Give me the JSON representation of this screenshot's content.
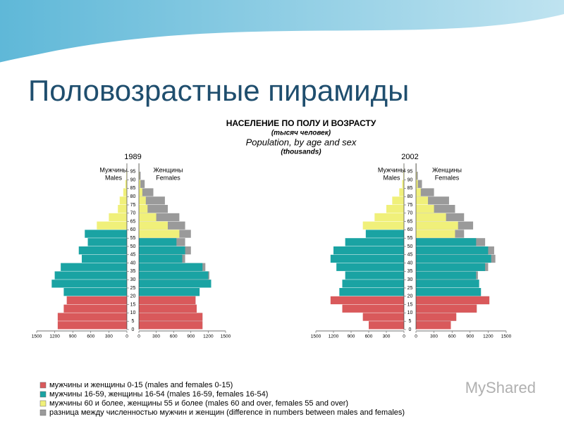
{
  "slide": {
    "title": "Половозрастные пирамиды",
    "header": [
      "НАСЕЛЕНИЕ ПО ПОЛУ И ВОЗРАСТУ",
      "(тысяч человек)",
      "Population, by age and sex",
      "(thousands)"
    ],
    "legend": [
      {
        "label": "мужчины и женщины 0-15 (males and females 0-15)",
        "color": "#d9595b"
      },
      {
        "label": "мужчины 16-59, женщины 16-54 (males 16-59, females 16-54)",
        "color": "#1aa3a3"
      },
      {
        "label": "мужчины 60 и более, женщины 55 и более (males 60 and over, females 55 and over)",
        "color": "#f0f07a"
      },
      {
        "label": "разница между численностью мужчин и женщин (difference in numbers between males and females)",
        "color": "#9a9a9a"
      }
    ],
    "watermark": "MyShared"
  },
  "chart_data": [
    {
      "type": "pyramid",
      "year": "1989",
      "male_label": [
        "Мужчины",
        "Males"
      ],
      "female_label": [
        "Женщины",
        "Females"
      ],
      "categories": [
        0,
        5,
        10,
        15,
        20,
        25,
        30,
        35,
        40,
        45,
        50,
        55,
        60,
        65,
        70,
        75,
        80,
        85,
        90,
        95
      ],
      "males": {
        "values": [
          1150,
          1150,
          1050,
          1000,
          1050,
          1250,
          1200,
          1100,
          750,
          800,
          650,
          700,
          500,
          300,
          150,
          120,
          60,
          25,
          8,
          2
        ],
        "breaks": [
          16,
          60
        ]
      },
      "females": {
        "values": [
          1100,
          1100,
          1000,
          980,
          1050,
          1250,
          1220,
          1150,
          800,
          900,
          800,
          900,
          800,
          700,
          500,
          450,
          250,
          100,
          30,
          8
        ],
        "breaks": [
          16,
          55
        ]
      },
      "xlim": [
        0,
        1500
      ],
      "xticks": [
        0,
        300,
        600,
        900,
        1200,
        1500
      ],
      "ylim": [
        0,
        100
      ],
      "yticks": [
        0,
        5,
        10,
        15,
        20,
        25,
        30,
        35,
        40,
        45,
        50,
        55,
        60,
        65,
        70,
        75,
        80,
        85,
        90,
        95
      ]
    },
    {
      "type": "pyramid",
      "year": "2002",
      "male_label": [
        "Мужчины",
        "Males"
      ],
      "female_label": [
        "Женщины",
        "Females"
      ],
      "categories": [
        0,
        5,
        10,
        15,
        20,
        25,
        30,
        35,
        40,
        45,
        50,
        55,
        60,
        65,
        70,
        75,
        80,
        85,
        90,
        95
      ],
      "males": {
        "values": [
          600,
          700,
          1050,
          1250,
          1100,
          1050,
          1000,
          1150,
          1250,
          1200,
          1000,
          650,
          700,
          500,
          300,
          200,
          80,
          30,
          10,
          3
        ],
        "breaks": [
          16,
          60
        ]
      },
      "females": {
        "values": [
          580,
          670,
          1010,
          1220,
          1080,
          1050,
          1030,
          1200,
          1320,
          1300,
          1150,
          800,
          950,
          800,
          650,
          550,
          300,
          100,
          30,
          10
        ],
        "breaks": [
          16,
          55
        ]
      },
      "xlim": [
        0,
        1500
      ],
      "xticks": [
        0,
        300,
        600,
        900,
        1200,
        1500
      ],
      "ylim": [
        0,
        100
      ],
      "yticks": [
        0,
        5,
        10,
        15,
        20,
        25,
        30,
        35,
        40,
        45,
        50,
        55,
        60,
        65,
        70,
        75,
        80,
        85,
        90,
        95
      ]
    }
  ]
}
